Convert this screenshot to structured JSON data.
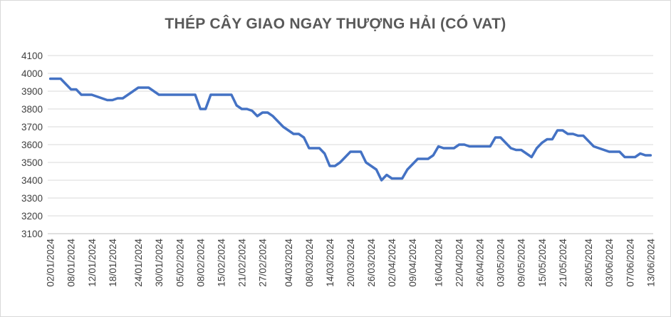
{
  "chart_data": {
    "type": "line",
    "title": "THÉP CÂY GIAO NGAY THƯỢNG HẢI (CÓ VAT)",
    "xlabel": "",
    "ylabel": "",
    "ylim": [
      3100,
      4100
    ],
    "yticks": [
      3100,
      3200,
      3300,
      3400,
      3500,
      3600,
      3700,
      3800,
      3900,
      4000,
      4100
    ],
    "grid": true,
    "legend": "none",
    "line_color": "#4472c4",
    "xticks": [
      "02/01/2024",
      "08/01/2024",
      "12/01/2024",
      "18/01/2024",
      "24/01/2024",
      "30/01/2024",
      "05/02/2024",
      "08/02/2024",
      "15/02/2024",
      "21/02/2024",
      "27/02/2024",
      "04/03/2024",
      "08/03/2024",
      "14/03/2024",
      "20/03/2024",
      "26/03/2024",
      "02/04/2024",
      "09/04/2024",
      "16/04/2024",
      "22/04/2024",
      "26/04/2024",
      "03/05/2024",
      "09/05/2024",
      "15/05/2024",
      "21/05/2024",
      "28/05/2024",
      "03/06/2024",
      "07/06/2024",
      "13/06/2024"
    ],
    "series": [
      {
        "values": [
          3970,
          3970,
          3970,
          3940,
          3910,
          3910,
          3880,
          3880,
          3880,
          3870,
          3860,
          3850,
          3850,
          3860,
          3860,
          3880,
          3900,
          3920,
          3920,
          3920,
          3900,
          3880,
          3880,
          3880,
          3880,
          3880,
          3880,
          3880,
          3880,
          3800,
          3800,
          3880,
          3880,
          3880,
          3880,
          3880,
          3820,
          3800,
          3800,
          3790,
          3760,
          3780,
          3780,
          3760,
          3730,
          3700,
          3680,
          3660,
          3660,
          3640,
          3580,
          3580,
          3580,
          3550,
          3480,
          3480,
          3500,
          3530,
          3560,
          3560,
          3560,
          3500,
          3480,
          3460,
          3400,
          3430,
          3410,
          3410,
          3410,
          3460,
          3490,
          3520,
          3520,
          3520,
          3540,
          3590,
          3580,
          3580,
          3580,
          3600,
          3600,
          3590,
          3590,
          3590,
          3590,
          3590,
          3640,
          3640,
          3610,
          3580,
          3570,
          3570,
          3550,
          3530,
          3580,
          3610,
          3630,
          3630,
          3680,
          3680,
          3660,
          3660,
          3650,
          3650,
          3620,
          3590,
          3580,
          3570,
          3560,
          3560,
          3560,
          3530,
          3530,
          3530,
          3550,
          3540,
          3540
        ]
      }
    ]
  }
}
